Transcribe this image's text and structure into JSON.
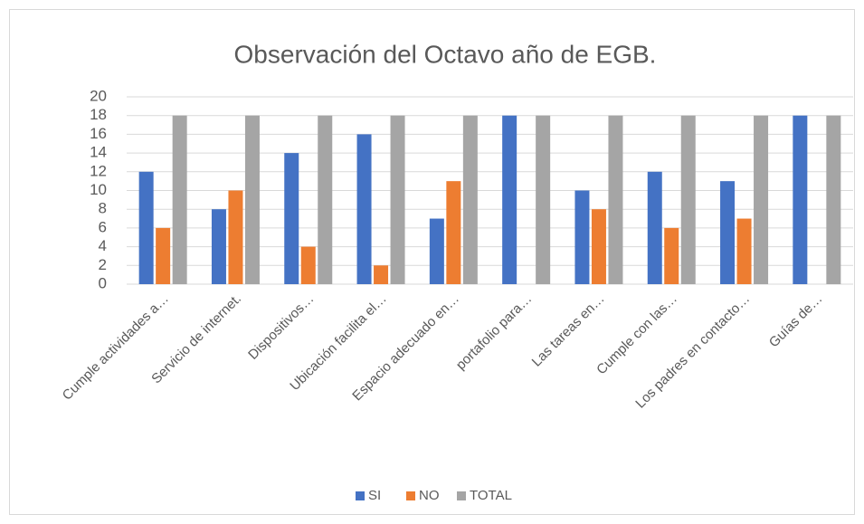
{
  "chart_data": {
    "type": "bar",
    "title": "Observación del Octavo año de EGB.",
    "categories": [
      "Cumple actividades a…",
      "Servicio de internet.",
      "Dispositivos…",
      "Ubicación facilita el…",
      "Espacio adecuado en…",
      "portafolio para…",
      "Las tareas en…",
      "Cumple con las…",
      "Los padres en contacto…",
      "Guías de…"
    ],
    "series": [
      {
        "name": "SI",
        "color": "#4472c4",
        "values": [
          12,
          8,
          14,
          16,
          7,
          18,
          10,
          12,
          11,
          18
        ]
      },
      {
        "name": "NO",
        "color": "#ed7d31",
        "values": [
          6,
          10,
          4,
          2,
          11,
          0,
          8,
          6,
          7,
          0
        ]
      },
      {
        "name": "TOTAL",
        "color": "#a5a5a5",
        "values": [
          18,
          18,
          18,
          18,
          18,
          18,
          18,
          18,
          18,
          18
        ]
      }
    ],
    "ylim": [
      0,
      20
    ],
    "yticks": [
      0,
      2,
      4,
      6,
      8,
      10,
      12,
      14,
      16,
      18,
      20
    ],
    "grid": true,
    "legend": "bottom"
  }
}
